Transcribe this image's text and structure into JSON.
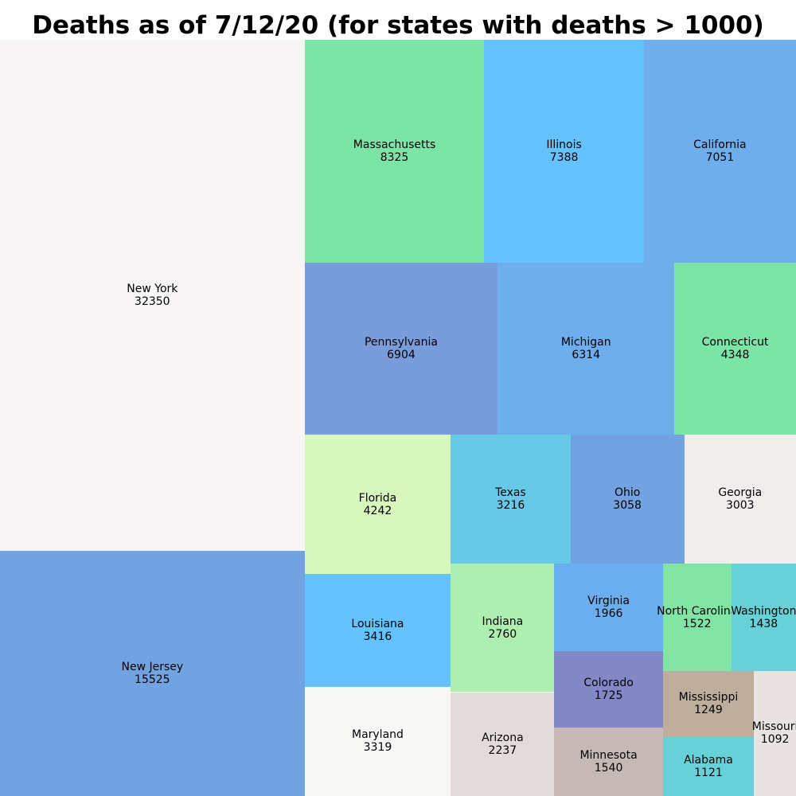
{
  "chart_data": {
    "type": "treemap",
    "title": "Deaths as of 7/12/20 (for states with deaths > 1000)",
    "items": [
      {
        "label": "New York",
        "value": 32350,
        "color": "#f7f5f6"
      },
      {
        "label": "New Jersey",
        "value": 15525,
        "color": "#72a3e0"
      },
      {
        "label": "Massachusetts",
        "value": 8325,
        "color": "#7ce4a7"
      },
      {
        "label": "Illinois",
        "value": 7388,
        "color": "#64c2fe"
      },
      {
        "label": "California",
        "value": 7051,
        "color": "#6faeed"
      },
      {
        "label": "Pennsylvania",
        "value": 6904,
        "color": "#799cda"
      },
      {
        "label": "Michigan",
        "value": 6314,
        "color": "#6faeed"
      },
      {
        "label": "Connecticut",
        "value": 4348,
        "color": "#7ce4a7"
      },
      {
        "label": "Florida",
        "value": 4242,
        "color": "#d8f7bd"
      },
      {
        "label": "Louisiana",
        "value": 3416,
        "color": "#64c2fe"
      },
      {
        "label": "Maryland",
        "value": 3319,
        "color": "#f8f8f7"
      },
      {
        "label": "Texas",
        "value": 3216,
        "color": "#66c9e7"
      },
      {
        "label": "Ohio",
        "value": 3058,
        "color": "#72a3e0"
      },
      {
        "label": "Georgia",
        "value": 3003,
        "color": "#f2eded"
      },
      {
        "label": "Indiana",
        "value": 2760,
        "color": "#adefb0"
      },
      {
        "label": "Arizona",
        "value": 2237,
        "color": "#e3dbda"
      },
      {
        "label": "Virginia",
        "value": 1966,
        "color": "#6aaeee"
      },
      {
        "label": "Colorado",
        "value": 1725,
        "color": "#8487c6"
      },
      {
        "label": "Minnesota",
        "value": 1540,
        "color": "#c6b8b4"
      },
      {
        "label": "North Carolina",
        "value": 1522,
        "color": "#82e4a4"
      },
      {
        "label": "Washington",
        "value": 1438,
        "color": "#66d1d6"
      },
      {
        "label": "Mississippi",
        "value": 1249,
        "color": "#bdad9c"
      },
      {
        "label": "Alabama",
        "value": 1121,
        "color": "#66d1d8"
      },
      {
        "label": "Missouri",
        "value": 1092,
        "color": "#e8e2e0"
      }
    ]
  }
}
